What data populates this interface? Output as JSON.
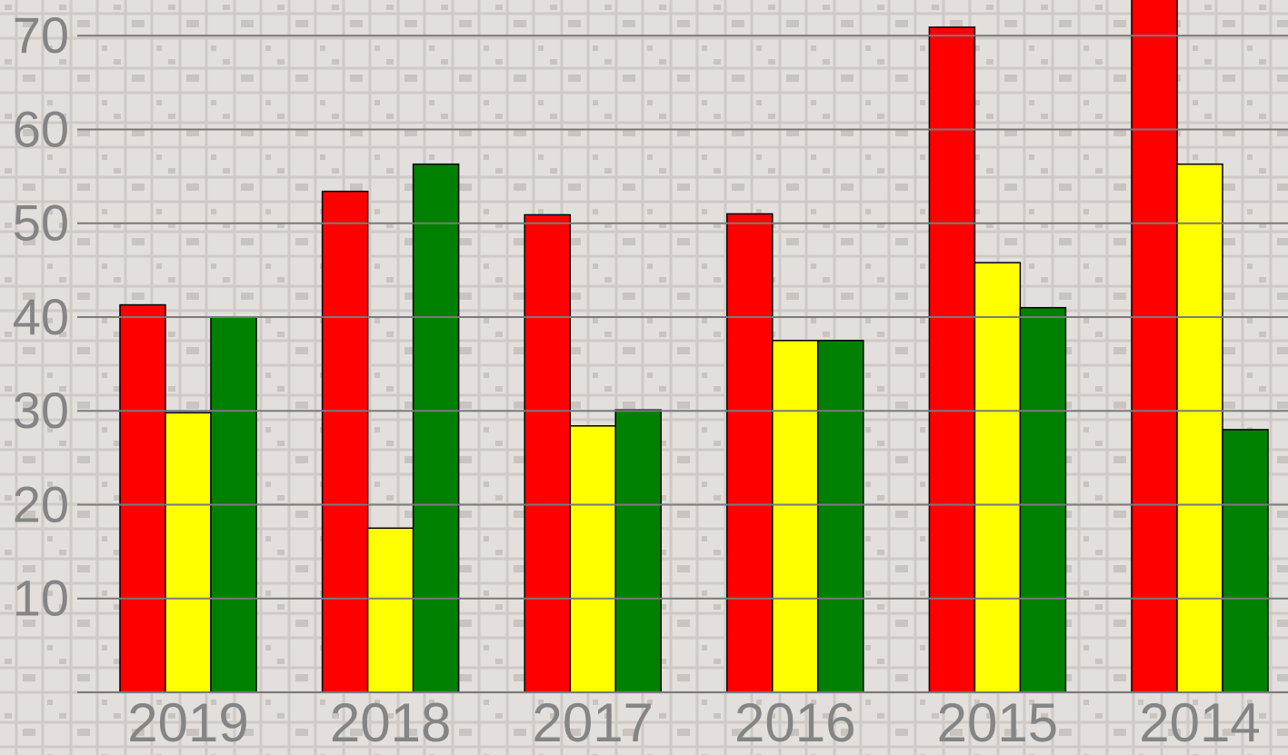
{
  "chart_data": {
    "type": "bar",
    "categories": [
      "2019",
      "2018",
      "2017",
      "2016",
      "2015",
      "2014"
    ],
    "series": [
      {
        "color": "#ff0000",
        "values": [
          41.3,
          53.4,
          50.9,
          51.0,
          70.9,
          76
        ]
      },
      {
        "color": "#ffff00",
        "values": [
          29.8,
          17.5,
          28.4,
          37.5,
          45.8,
          56.3
        ]
      },
      {
        "color": "#008000",
        "values": [
          40.0,
          56.3,
          30.1,
          37.5,
          41.0,
          28.0
        ]
      }
    ],
    "ylim": [
      0,
      73.8
    ],
    "yticks": [
      10,
      20,
      30,
      40,
      50,
      60,
      70
    ],
    "grid": true
  }
}
